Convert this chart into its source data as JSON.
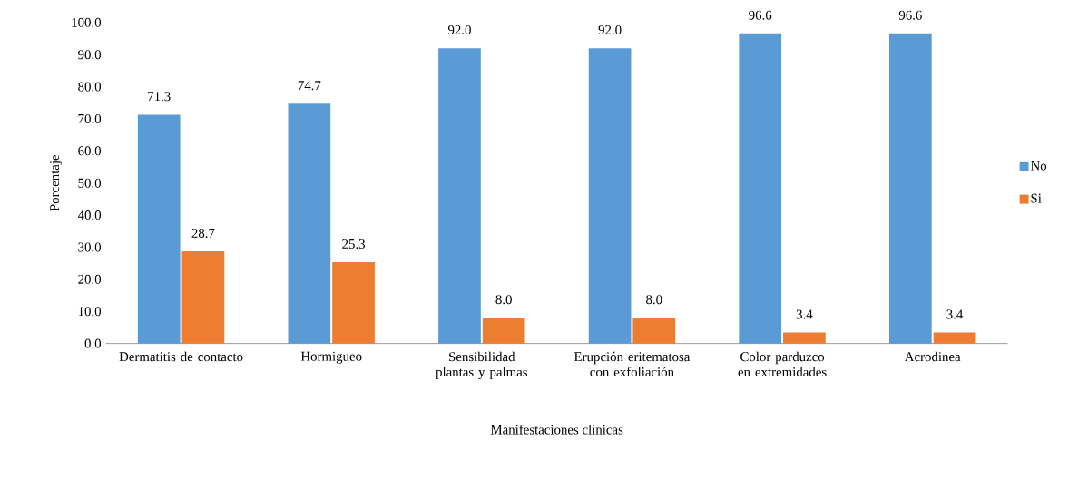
{
  "chart_data": {
    "type": "bar",
    "xlabel": "Manifestaciones clínicas",
    "ylabel": "Porcentaje",
    "categories": [
      "Dermatitis de contacto",
      "Hormigueo",
      "Sensibilidad plantas y palmas",
      "Erupción eritematosa con exfoliación",
      "Color parduzco en extremidades",
      "Acrodinea"
    ],
    "series": [
      {
        "name": "No",
        "color": "#5b9bd5",
        "values": [
          71.3,
          74.7,
          92.0,
          92.0,
          96.6,
          96.6
        ],
        "value_labels": [
          "71.3",
          "74.7",
          "92.0",
          "92.0",
          "96.6",
          "96.6"
        ]
      },
      {
        "name": "Si",
        "color": "#ed7d31",
        "values": [
          28.7,
          25.3,
          8.0,
          8.0,
          3.4,
          3.4
        ],
        "value_labels": [
          "28.7",
          "25.3",
          "8.0",
          "8.0",
          "3.4",
          "3.4"
        ]
      }
    ],
    "ylim": [
      0,
      100
    ],
    "yticks": [
      {
        "value": 0,
        "label": "0.0"
      },
      {
        "value": 10,
        "label": "10.0"
      },
      {
        "value": 20,
        "label": "20.0"
      },
      {
        "value": 30,
        "label": "30.0"
      },
      {
        "value": 40,
        "label": "40.0"
      },
      {
        "value": 50,
        "label": "50.0"
      },
      {
        "value": 60,
        "label": "60.0"
      },
      {
        "value": 70,
        "label": "70.0"
      },
      {
        "value": 80,
        "label": "80.0"
      },
      {
        "value": 90,
        "label": "90.0"
      },
      {
        "value": 100,
        "label": "100.0"
      }
    ],
    "legend": "right",
    "grid": false
  }
}
